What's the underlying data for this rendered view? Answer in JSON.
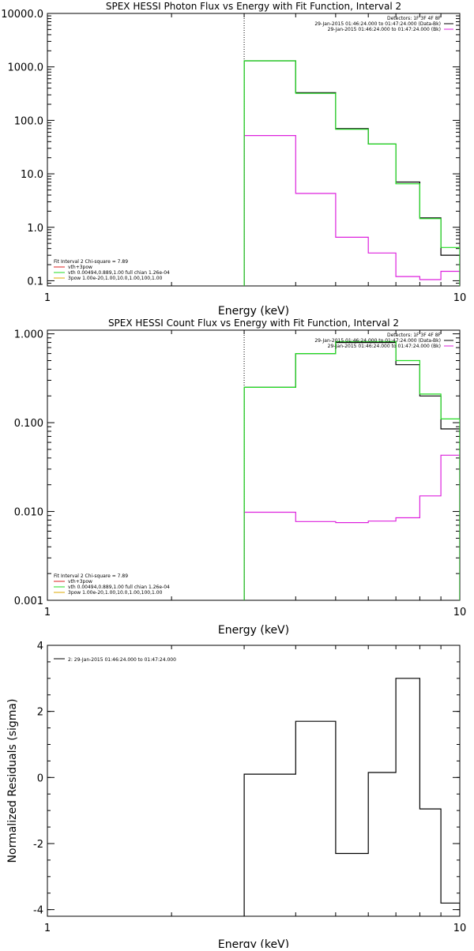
{
  "colors": {
    "black": "#000000",
    "green": "#22dd22",
    "magenta": "#dd22dd",
    "orange": "#ddaa00",
    "red": "#dd2222"
  },
  "chart_data": [
    {
      "type": "line",
      "title": "SPEX HESSI Photon Flux vs Energy with Fit Function, Interval 2",
      "xlabel": "Energy (keV)",
      "ylabel": "",
      "xscale": "log",
      "yscale": "log",
      "xlim": [
        1,
        10
      ],
      "ylim": [
        0.08,
        10000
      ],
      "xticks": [
        "1",
        "10"
      ],
      "yticks": [
        {
          "v": 0.1,
          "label": "0.1"
        },
        {
          "v": 1,
          "label": "1.0"
        },
        {
          "v": 10,
          "label": "10.0"
        },
        {
          "v": 100,
          "label": "100.0"
        },
        {
          "v": 1000,
          "label": "1000.0"
        },
        {
          "v": 10000,
          "label": "10000.0"
        }
      ],
      "vline": 3,
      "legend_top": [
        {
          "text": "Detectors: 1F 3F 4F 8F",
          "color": ""
        },
        {
          "text": "29-Jan-2015 01:46:24.000 to 01:47:24.000 (Data-Bk)",
          "color": "black"
        },
        {
          "text": "29-Jan-2015 01:46:24.000 to 01:47:24.000 (Bk)",
          "color": "magenta"
        }
      ],
      "legend_bottom": [
        {
          "text": "Fit Interval  2   Chi-square = 7.89",
          "color": ""
        },
        {
          "text": "vth+3pow",
          "color": "red"
        },
        {
          "text": "vth 0.00494,0.889,1.00  full chian 1.26e-04",
          "color": "green"
        },
        {
          "text": "3pow 1.00e-20,1.00,10.0,1.00,100,1.00",
          "color": "orange"
        }
      ],
      "edges": [
        3,
        4,
        5,
        6,
        7,
        8,
        9,
        10
      ],
      "series": [
        {
          "name": "Data-Bk",
          "color": "black",
          "values": [
            1300,
            330,
            70,
            36,
            7,
            1.5,
            0.3
          ]
        },
        {
          "name": "Bk",
          "color": "magenta",
          "values": [
            52,
            4.3,
            0.65,
            0.33,
            0.12,
            0.105,
            0.15
          ]
        },
        {
          "name": "vth",
          "color": "green",
          "values": [
            1300,
            320,
            68,
            36,
            6.5,
            1.45,
            0.42
          ]
        }
      ]
    },
    {
      "type": "line",
      "title": "SPEX HESSI Count Flux vs Energy with Fit Function, Interval 2",
      "xlabel": "Energy (keV)",
      "ylabel": "",
      "xscale": "log",
      "yscale": "log",
      "xlim": [
        1,
        10
      ],
      "ylim": [
        0.001,
        1.1
      ],
      "xticks": [
        "1",
        "10"
      ],
      "yticks": [
        {
          "v": 0.001,
          "label": "0.001"
        },
        {
          "v": 0.01,
          "label": "0.010"
        },
        {
          "v": 0.1,
          "label": "0.100"
        },
        {
          "v": 1,
          "label": "1.000"
        }
      ],
      "vline": 3,
      "legend_top": [
        {
          "text": "Detectors: 1F 3F 4F 8F",
          "color": ""
        },
        {
          "text": "29-Jan-2015 01:46:24.000 to 01:47:24.000 (Data-Bk)",
          "color": "black"
        },
        {
          "text": "29-Jan-2015 01:46:24.000 to 01:47:24.000 (Bk)",
          "color": "magenta"
        }
      ],
      "legend_bottom": [
        {
          "text": "Fit Interval  2   Chi-square = 7.89",
          "color": ""
        },
        {
          "text": "vth+3pow",
          "color": "red"
        },
        {
          "text": "vth 0.00494,0.889,1.00  full chian 1.26e-04",
          "color": "green"
        },
        {
          "text": "3pow 1.00e-20,1.00,10.0,1.00,100,1.00",
          "color": "orange"
        }
      ],
      "edges": [
        3,
        4,
        5,
        6,
        7,
        8,
        9,
        10
      ],
      "series": [
        {
          "name": "Data-Bk",
          "color": "black",
          "values": [
            0.25,
            0.6,
            0.8,
            0.8,
            0.45,
            0.2,
            0.085
          ]
        },
        {
          "name": "Bk",
          "color": "magenta",
          "values": [
            0.0098,
            0.0077,
            0.0075,
            0.0078,
            0.0085,
            0.015,
            0.043
          ]
        },
        {
          "name": "vth",
          "color": "green",
          "values": [
            0.25,
            0.6,
            0.82,
            0.82,
            0.5,
            0.21,
            0.11
          ]
        }
      ]
    },
    {
      "type": "line",
      "title": "",
      "xlabel": "Energy (keV)",
      "ylabel": "Normalized Residuals (sigma)",
      "xscale": "log",
      "yscale": "linear",
      "xlim": [
        1,
        10
      ],
      "ylim": [
        -4.2,
        4
      ],
      "xticks": [
        "1",
        "10"
      ],
      "yticks": [
        {
          "v": -4,
          "label": "-4"
        },
        {
          "v": -2,
          "label": "-2"
        },
        {
          "v": 0,
          "label": "0"
        },
        {
          "v": 2,
          "label": "2"
        },
        {
          "v": 4,
          "label": "4"
        }
      ],
      "legend_top": [
        {
          "text": "2: 29-Jan-2015 01:46:24.000 to 01:47:24.000",
          "color": "black"
        }
      ],
      "legend_bottom": [],
      "edges": [
        3,
        4,
        5,
        6,
        7,
        8,
        9,
        10
      ],
      "series": [
        {
          "name": "residuals",
          "color": "black",
          "values": [
            0.1,
            1.7,
            -2.3,
            0.15,
            3.0,
            -0.95,
            -3.8
          ]
        }
      ]
    }
  ]
}
